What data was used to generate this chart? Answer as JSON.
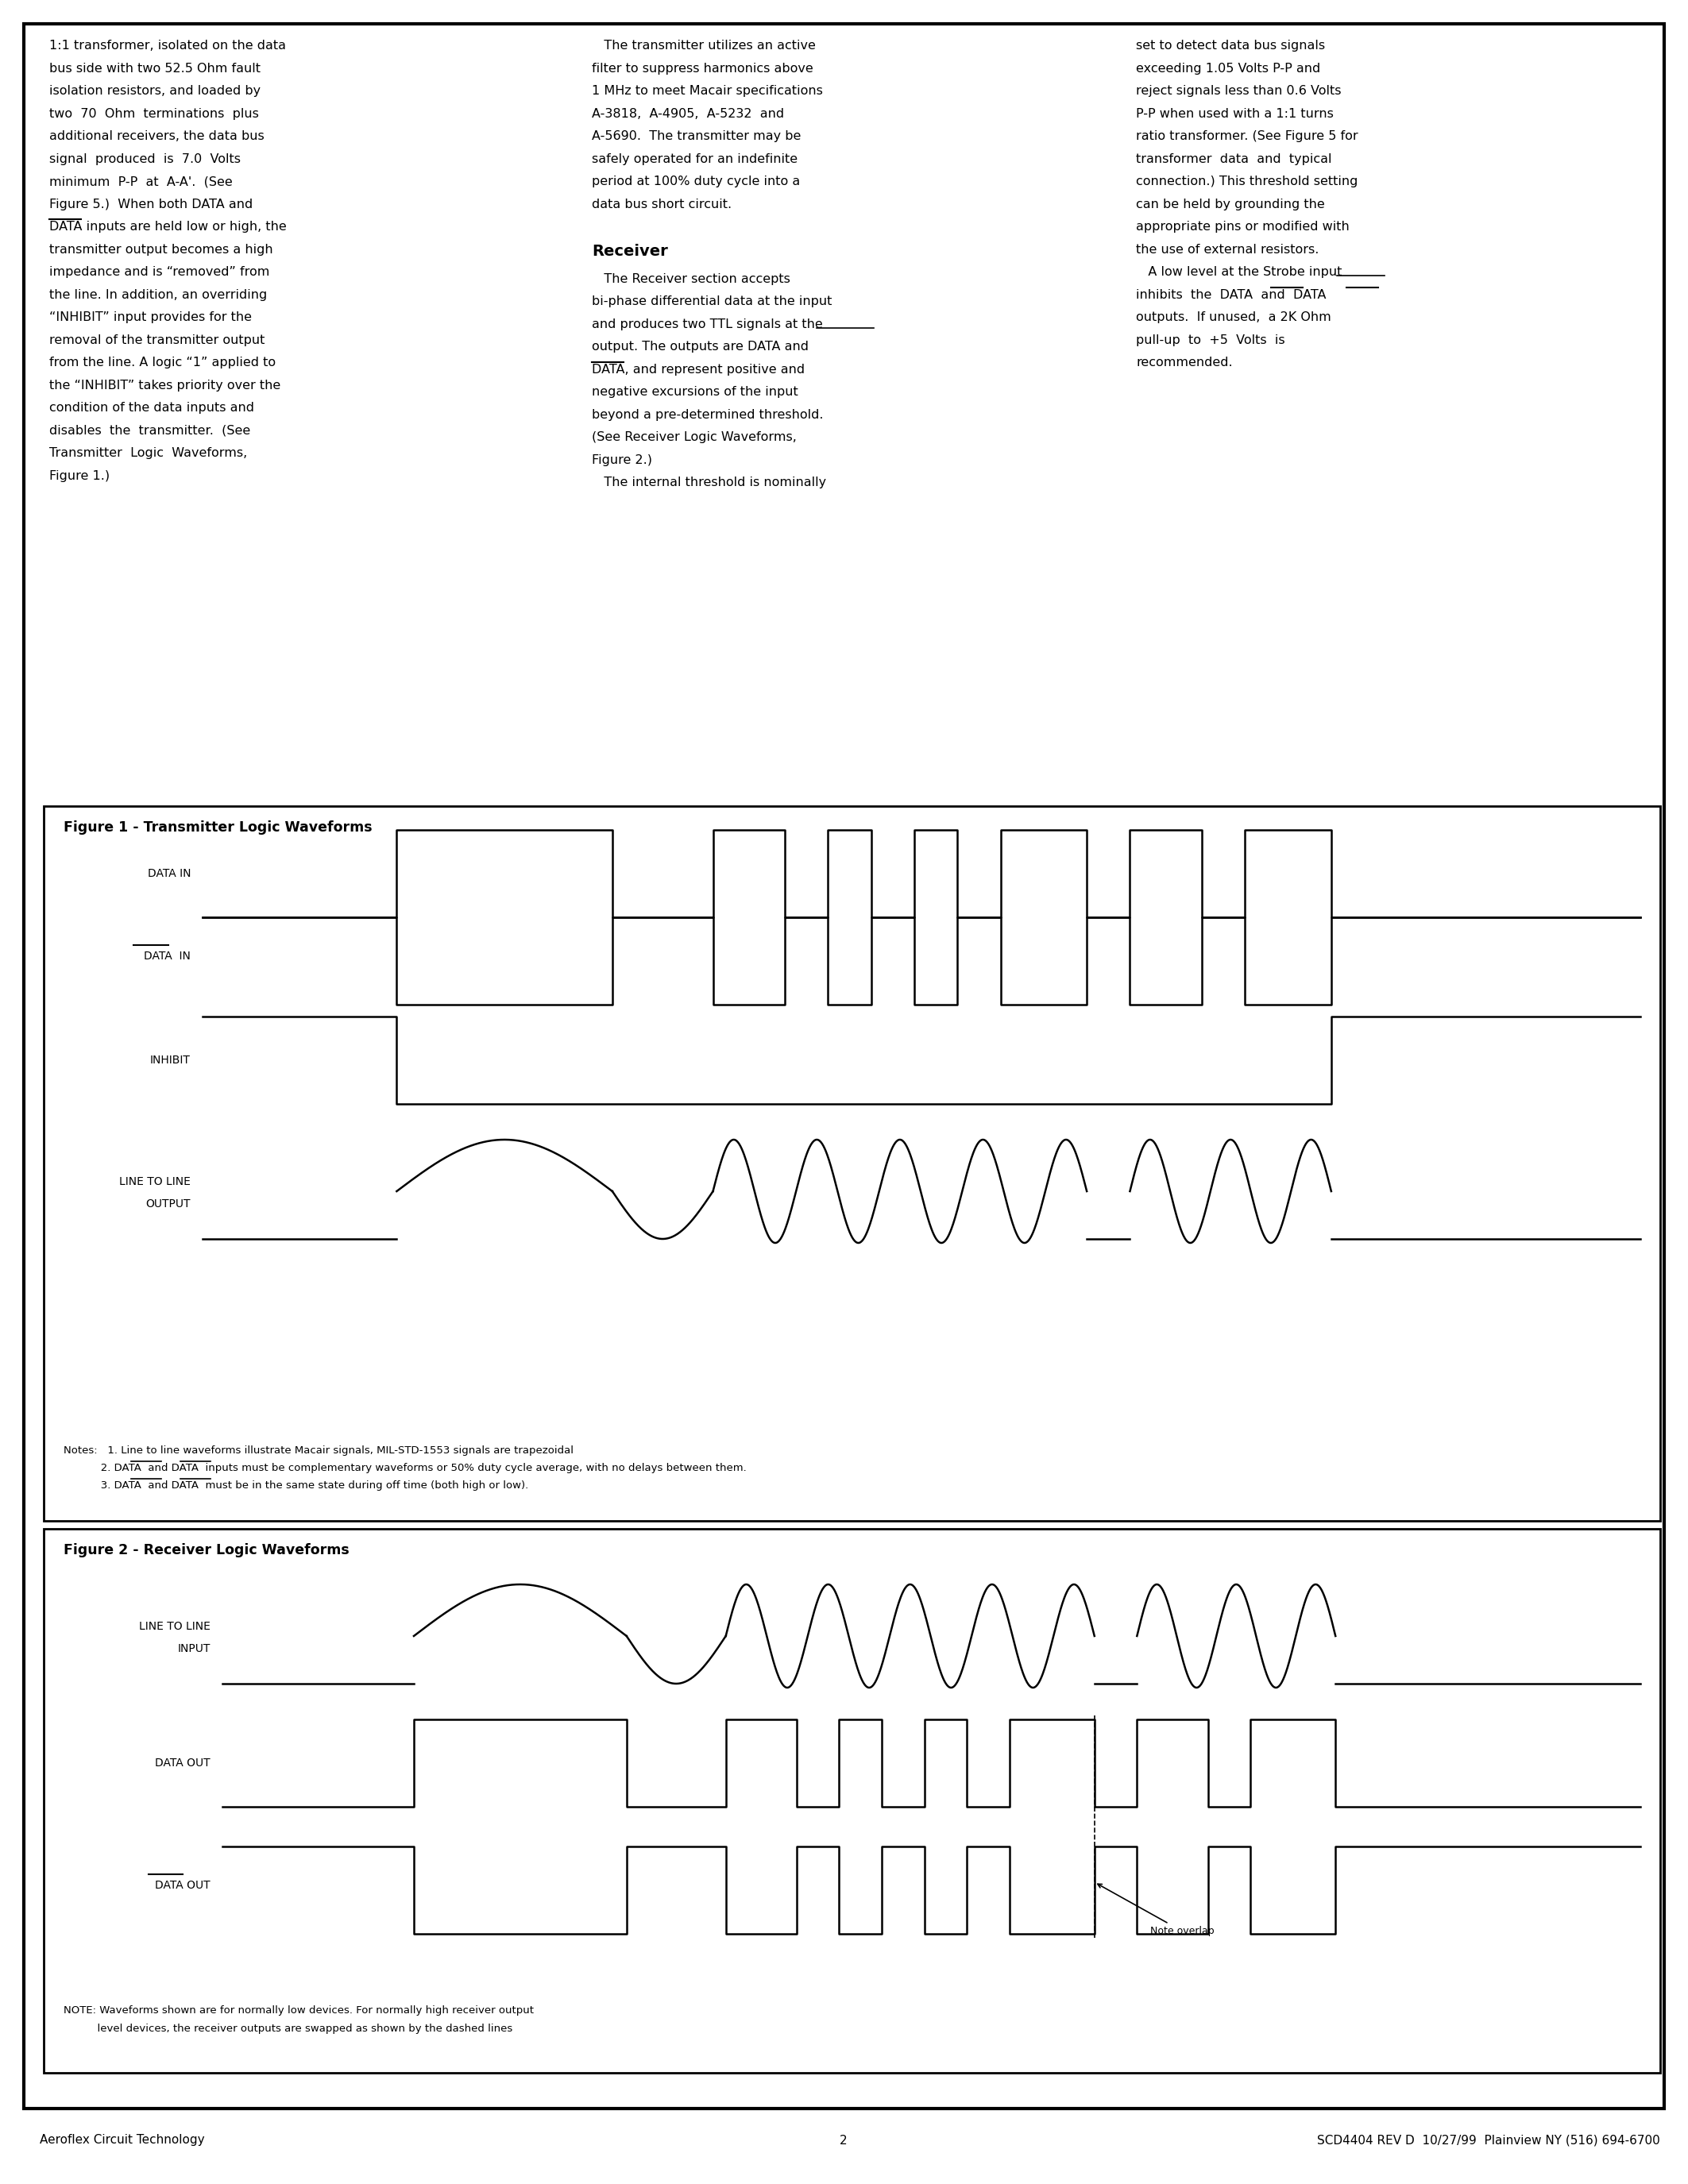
{
  "page_bg": "#ffffff",
  "border_color": "#000000",
  "text_color": "#000000",
  "fig1_title": "Figure 1 - Transmitter Logic Waveforms",
  "fig2_title": "Figure 2 - Receiver Logic Waveforms",
  "footer_left": "Aeroflex Circuit Technology",
  "footer_center": "2",
  "footer_right": "SCD4404 REV D  10/27/99  Plainview NY (516) 694-6700",
  "notes_fig1_1": "Notes:   1. Line to line waveforms illustrate Macair signals, MIL-STD-1553 signals are trapezoidal",
  "notes_fig1_2": "           2. DATA  and DATA  inputs must be complementary waveforms or 50% duty cycle average, with no delays between them.",
  "notes_fig1_3": "           3. DATA  and DATA  must be in the same state during off time (both high or low).",
  "note_fig2_1": "NOTE: Waveforms shown are for normally low devices. For normally high receiver output",
  "note_fig2_2": "          level devices, the receiver outputs are swapped as shown by the dashed lines",
  "col1_lines": [
    "1:1 transformer, isolated on the data",
    "bus side with two 52.5 Ohm fault",
    "isolation resistors, and loaded by",
    "two  70  Ohm  terminations  plus",
    "additional receivers, the data bus",
    "signal  produced  is  7.0  Volts",
    "minimum  P-P  at  A-A'.  (See",
    "Figure 5.)  When both DATA and",
    "DATA inputs are held low or high, the",
    "transmitter output becomes a high",
    "impedance and is “removed” from",
    "the line. In addition, an overriding",
    "“INHIBIT” input provides for the",
    "removal of the transmitter output",
    "from the line. A logic “1” applied to",
    "the “INHIBIT” takes priority over the",
    "condition of the data inputs and",
    "disables  the  transmitter.  (See",
    "Transmitter  Logic  Waveforms,",
    "Figure 1.)"
  ],
  "col1_data_overbar_line": 8,
  "col2_lines": [
    "   The transmitter utilizes an active",
    "filter to suppress harmonics above",
    "1 MHz to meet Macair specifications",
    "A-3818,  A-4905,  A-5232  and",
    "A-5690.  The transmitter may be",
    "safely operated for an indefinite",
    "period at 100% duty cycle into a",
    "data bus short circuit."
  ],
  "col2_receiver_header": "Receiver",
  "col2_receiver_lines": [
    "   The Receiver section accepts",
    "bi-phase differential data at the input",
    "and produces two TTL signals at the",
    "output. The outputs are DATA and",
    "DATA, and represent positive and",
    "negative excursions of the input",
    "beyond a pre-determined threshold.",
    "(See Receiver Logic Waveforms,",
    "Figure 2.)",
    "   The internal threshold is nominally"
  ],
  "col2_data_overbar_line": 4,
  "col3_lines": [
    "set to detect data bus signals",
    "exceeding 1.05 Volts P-P and",
    "reject signals less than 0.6 Volts",
    "P-P when used with a 1:1 turns",
    "ratio transformer. (See Figure 5 for",
    "transformer  data  and  typical",
    "connection.) This threshold setting",
    "can be held by grounding the",
    "appropriate pins or modified with",
    "the use of external resistors.",
    "   A low level at the Strobe input",
    "inhibits  the  DATA  and  DATA",
    "outputs.  If unused,  a 2K Ohm",
    "pull-up  to  +5  Volts  is",
    "recommended."
  ],
  "col3_strobe_underline_line": 10,
  "col3_data_overbar_line": 11
}
